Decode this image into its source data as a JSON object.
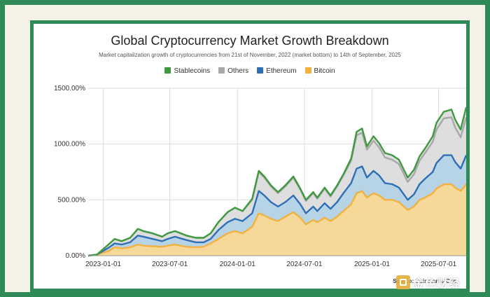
{
  "chart_data": {
    "type": "area",
    "stacked": true,
    "title": "Global Cryptocurrency Market Growth Breakdown",
    "subtitle": "Market capitalization growth of cryptocurrencies from 21st of November, 2022 (market bottom) to 14th of September, 2025",
    "source": "Source: CoinMarketCap",
    "legend_position": "top-center",
    "grid": true,
    "ylim": [
      0,
      1500
    ],
    "y_ticks": [
      "0.00%",
      "500.00%",
      "1000.00%",
      "1500.00%"
    ],
    "x_ticks": [
      "2023-01-01",
      "2023-07-01",
      "2024-01-01",
      "2024-07-01",
      "2025-01-01",
      "2025-07-01"
    ],
    "x": [
      "2022-11-21",
      "2022-12-15",
      "2023-01-15",
      "2023-02-01",
      "2023-02-20",
      "2023-03-15",
      "2023-04-05",
      "2023-04-20",
      "2023-05-15",
      "2023-06-10",
      "2023-06-25",
      "2023-07-15",
      "2023-08-15",
      "2023-09-10",
      "2023-10-01",
      "2023-10-20",
      "2023-11-10",
      "2023-12-05",
      "2023-12-25",
      "2024-01-15",
      "2024-02-10",
      "2024-02-28",
      "2024-03-14",
      "2024-04-01",
      "2024-04-20",
      "2024-05-10",
      "2024-06-01",
      "2024-06-20",
      "2024-07-05",
      "2024-07-25",
      "2024-08-05",
      "2024-08-25",
      "2024-09-10",
      "2024-09-28",
      "2024-10-15",
      "2024-11-05",
      "2024-11-20",
      "2024-12-05",
      "2024-12-18",
      "2025-01-05",
      "2025-01-20",
      "2025-02-05",
      "2025-02-25",
      "2025-03-15",
      "2025-04-08",
      "2025-04-25",
      "2025-05-10",
      "2025-05-25",
      "2025-06-15",
      "2025-06-25",
      "2025-07-15",
      "2025-08-05",
      "2025-08-15",
      "2025-08-30",
      "2025-09-14"
    ],
    "series": [
      {
        "name": "Bitcoin",
        "color": "#f2b240",
        "values": [
          0,
          10,
          40,
          75,
          65,
          75,
          100,
          90,
          85,
          80,
          90,
          100,
          80,
          75,
          80,
          110,
          150,
          200,
          220,
          200,
          260,
          380,
          360,
          330,
          310,
          350,
          390,
          340,
          280,
          320,
          300,
          340,
          310,
          350,
          400,
          460,
          560,
          580,
          520,
          560,
          540,
          500,
          500,
          480,
          410,
          440,
          500,
          520,
          560,
          600,
          640,
          640,
          610,
          580,
          640
        ]
      },
      {
        "name": "Ethereum",
        "color": "#2f6fb5",
        "values": [
          0,
          10,
          70,
          110,
          100,
          120,
          180,
          170,
          150,
          130,
          150,
          170,
          140,
          120,
          120,
          150,
          230,
          300,
          330,
          310,
          380,
          580,
          540,
          480,
          440,
          480,
          540,
          460,
          380,
          440,
          400,
          470,
          420,
          480,
          560,
          650,
          780,
          800,
          700,
          760,
          720,
          650,
          640,
          610,
          500,
          550,
          640,
          690,
          750,
          830,
          900,
          900,
          840,
          780,
          900
        ]
      },
      {
        "name": "Others",
        "color": "#a8a8a8",
        "values": [
          0,
          10,
          100,
          150,
          130,
          160,
          240,
          220,
          200,
          170,
          200,
          220,
          180,
          160,
          160,
          200,
          300,
          390,
          430,
          400,
          500,
          750,
          700,
          620,
          560,
          620,
          700,
          590,
          490,
          560,
          510,
          600,
          530,
          620,
          720,
          850,
          1080,
          1100,
          950,
          1030,
          970,
          880,
          860,
          820,
          660,
          730,
          850,
          920,
          1020,
          1130,
          1230,
          1240,
          1150,
          1060,
          1240
        ]
      },
      {
        "name": "Stablecoins",
        "color": "#3f9a3f",
        "values": [
          0,
          10,
          100,
          150,
          130,
          160,
          240,
          220,
          200,
          170,
          200,
          220,
          180,
          160,
          160,
          200,
          300,
          390,
          430,
          400,
          510,
          760,
          710,
          630,
          570,
          630,
          710,
          600,
          500,
          570,
          520,
          610,
          540,
          630,
          730,
          870,
          1110,
          1140,
          980,
          1070,
          1010,
          920,
          900,
          860,
          700,
          770,
          890,
          960,
          1070,
          1190,
          1290,
          1310,
          1220,
          1130,
          1330
        ]
      }
    ]
  },
  "watermark": "金色财经"
}
